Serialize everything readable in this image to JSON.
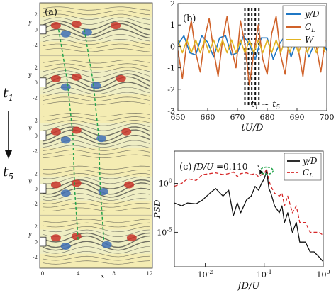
{
  "figure": {
    "time_arrow": {
      "start_label": "t",
      "start_sub": "1",
      "end_label": "t",
      "end_sub": "5"
    }
  },
  "panel_a": {
    "label": "(a)",
    "y_axis_label": "y",
    "x_axis_label": "x",
    "y_ticks": [
      "2",
      "0",
      "-2"
    ],
    "x_ticks": [
      "0",
      "4",
      "8",
      "12"
    ],
    "snapshot_count": 5,
    "colors": {
      "background": "#f4ecb3",
      "positive_vorticity": "#c8342a",
      "negative_vorticity": "#3f6fb5",
      "streamline": "#3a3a3a",
      "guide_line": "#22a34a"
    }
  },
  "panel_b": {
    "label": "(b)",
    "annotation": {
      "text": "t",
      "sub1": "1",
      "sep": " ~ ",
      "text2": "t",
      "sub2": "5"
    }
  },
  "panel_c": {
    "label": "(c)",
    "annotation": {
      "text": "fD/U",
      "value_text": " =0.110"
    }
  },
  "chart_data": [
    {
      "type": "line",
      "panel": "(b)",
      "xlabel": "tU/D",
      "ylabel": "",
      "xlim": [
        650,
        700
      ],
      "ylim": [
        -3,
        2
      ],
      "x_ticks": [
        650,
        660,
        670,
        680,
        690,
        700
      ],
      "y_ticks": [
        2,
        1,
        0,
        -1,
        -2,
        -3
      ],
      "grid": false,
      "legend": "top-right",
      "highlight_times": [
        672.5,
        673.7,
        674.8,
        676.0,
        677.2
      ],
      "series": [
        {
          "name": "y/D",
          "color": "#1f77c4",
          "x": [
            650,
            652,
            654,
            656,
            658,
            660,
            662,
            664,
            666,
            668,
            670,
            672,
            674,
            676,
            678,
            680,
            682,
            684,
            686,
            688,
            690,
            692,
            694,
            696,
            698,
            700
          ],
          "y": [
            0.1,
            0.5,
            -0.3,
            -0.4,
            0.5,
            0.2,
            -0.5,
            0.4,
            0.5,
            -0.4,
            -0.3,
            0.5,
            0.1,
            -0.6,
            0.4,
            0.4,
            -0.6,
            0.1,
            0.5,
            -0.5,
            0.3,
            0.4,
            -0.5,
            0.2,
            0.5,
            -0.2
          ]
        },
        {
          "name": "C_L",
          "color": "#d0622a",
          "x": [
            650,
            651.5,
            653,
            654.5,
            656,
            657.5,
            659,
            660.5,
            662,
            663.5,
            665,
            666.5,
            668,
            669.5,
            671,
            672.5,
            674,
            675.5,
            677,
            678.5,
            680,
            681.5,
            683,
            684.5,
            686,
            687.5,
            689,
            690.5,
            692,
            693.5,
            695,
            696.5,
            698,
            699.5
          ],
          "y": [
            -0.2,
            -1.5,
            0.2,
            1.2,
            -0.3,
            -1.2,
            0.4,
            1.3,
            -0.2,
            -1.4,
            0.3,
            1.4,
            -0.1,
            -1.0,
            1.2,
            0.1,
            -1.8,
            -0.3,
            1.0,
            -0.6,
            -1.3,
            0.6,
            1.4,
            -0.4,
            -1.3,
            0.5,
            1.5,
            -0.2,
            -1.4,
            0.4,
            1.6,
            0.0,
            -1.2,
            0.3
          ]
        },
        {
          "name": "W",
          "color": "#e2b422",
          "x": [
            650,
            651.5,
            653,
            654.5,
            656,
            657.5,
            659,
            660.5,
            662,
            663.5,
            665,
            666.5,
            668,
            669.5,
            671,
            672.5,
            674,
            675.5,
            677,
            678.5,
            680,
            681.5,
            683,
            684.5,
            686,
            687.5,
            689,
            690.5,
            692,
            693.5,
            695,
            696.5,
            698,
            699.5
          ],
          "y": [
            0.3,
            -0.3,
            0.3,
            -0.3,
            0.3,
            -0.3,
            0.3,
            -0.3,
            0.3,
            -0.3,
            0.3,
            -0.3,
            0.3,
            -0.3,
            0.3,
            -0.3,
            0.3,
            -0.3,
            0.3,
            -0.3,
            0.3,
            -0.3,
            0.3,
            -0.3,
            0.3,
            -0.3,
            0.3,
            -0.3,
            0.3,
            -0.3,
            0.3,
            -0.3,
            0.3,
            -0.3
          ]
        }
      ]
    },
    {
      "type": "line",
      "panel": "(c)",
      "xlabel": "fD/U",
      "ylabel": "PSD",
      "x_scale": "log",
      "y_scale": "log",
      "xlim": [
        0.003,
        1
      ],
      "ylim": [
        3e-09,
        2000
      ],
      "x_ticks": [
        0.01,
        0.1,
        1
      ],
      "y_ticks": [
        1,
        1e-05
      ],
      "grid": false,
      "legend": "top-right",
      "peak": {
        "x": 0.11,
        "y": 20
      },
      "series": [
        {
          "name": "y/D",
          "color": "#111111",
          "dash": "solid",
          "x": [
            0.003,
            0.004,
            0.005,
            0.007,
            0.009,
            0.012,
            0.015,
            0.02,
            0.025,
            0.03,
            0.035,
            0.04,
            0.05,
            0.06,
            0.07,
            0.08,
            0.09,
            0.1,
            0.11,
            0.12,
            0.13,
            0.15,
            0.18,
            0.2,
            0.22,
            0.25,
            0.3,
            0.35,
            0.4,
            0.5,
            0.6,
            0.7,
            0.85,
            1.0
          ],
          "y": [
            0.01,
            0.005,
            0.01,
            0.008,
            0.02,
            0.1,
            0.3,
            0.05,
            0.2,
            0.0005,
            0.01,
            0.001,
            0.02,
            0.05,
            0.5,
            0.2,
            1,
            3,
            20,
            0.3,
            0.1,
            0.005,
            0.001,
            0.005,
            0.0001,
            0.001,
            1e-05,
            0.0001,
            1e-06,
            1e-06,
            1e-07,
            1e-07,
            3e-08,
            1e-08
          ]
        },
        {
          "name": "C_L",
          "color": "#d62728",
          "dash": "dashed",
          "x": [
            0.003,
            0.004,
            0.005,
            0.007,
            0.009,
            0.012,
            0.015,
            0.02,
            0.025,
            0.03,
            0.035,
            0.04,
            0.05,
            0.06,
            0.07,
            0.08,
            0.09,
            0.1,
            0.11,
            0.12,
            0.13,
            0.15,
            0.18,
            0.2,
            0.22,
            0.25,
            0.3,
            0.35,
            0.4,
            0.5,
            0.6,
            0.7,
            0.85,
            1.0
          ],
          "y": [
            0.5,
            1,
            3,
            2,
            8,
            10,
            12,
            8,
            10,
            15,
            5,
            10,
            12,
            8,
            10,
            5,
            8,
            10,
            30,
            2,
            0.5,
            0.1,
            0.05,
            0.1,
            0.005,
            0.05,
            0.001,
            0.005,
            0.0001,
            0.0001,
            1e-05,
            1e-05,
            1e-05,
            5e-06
          ]
        }
      ]
    }
  ]
}
